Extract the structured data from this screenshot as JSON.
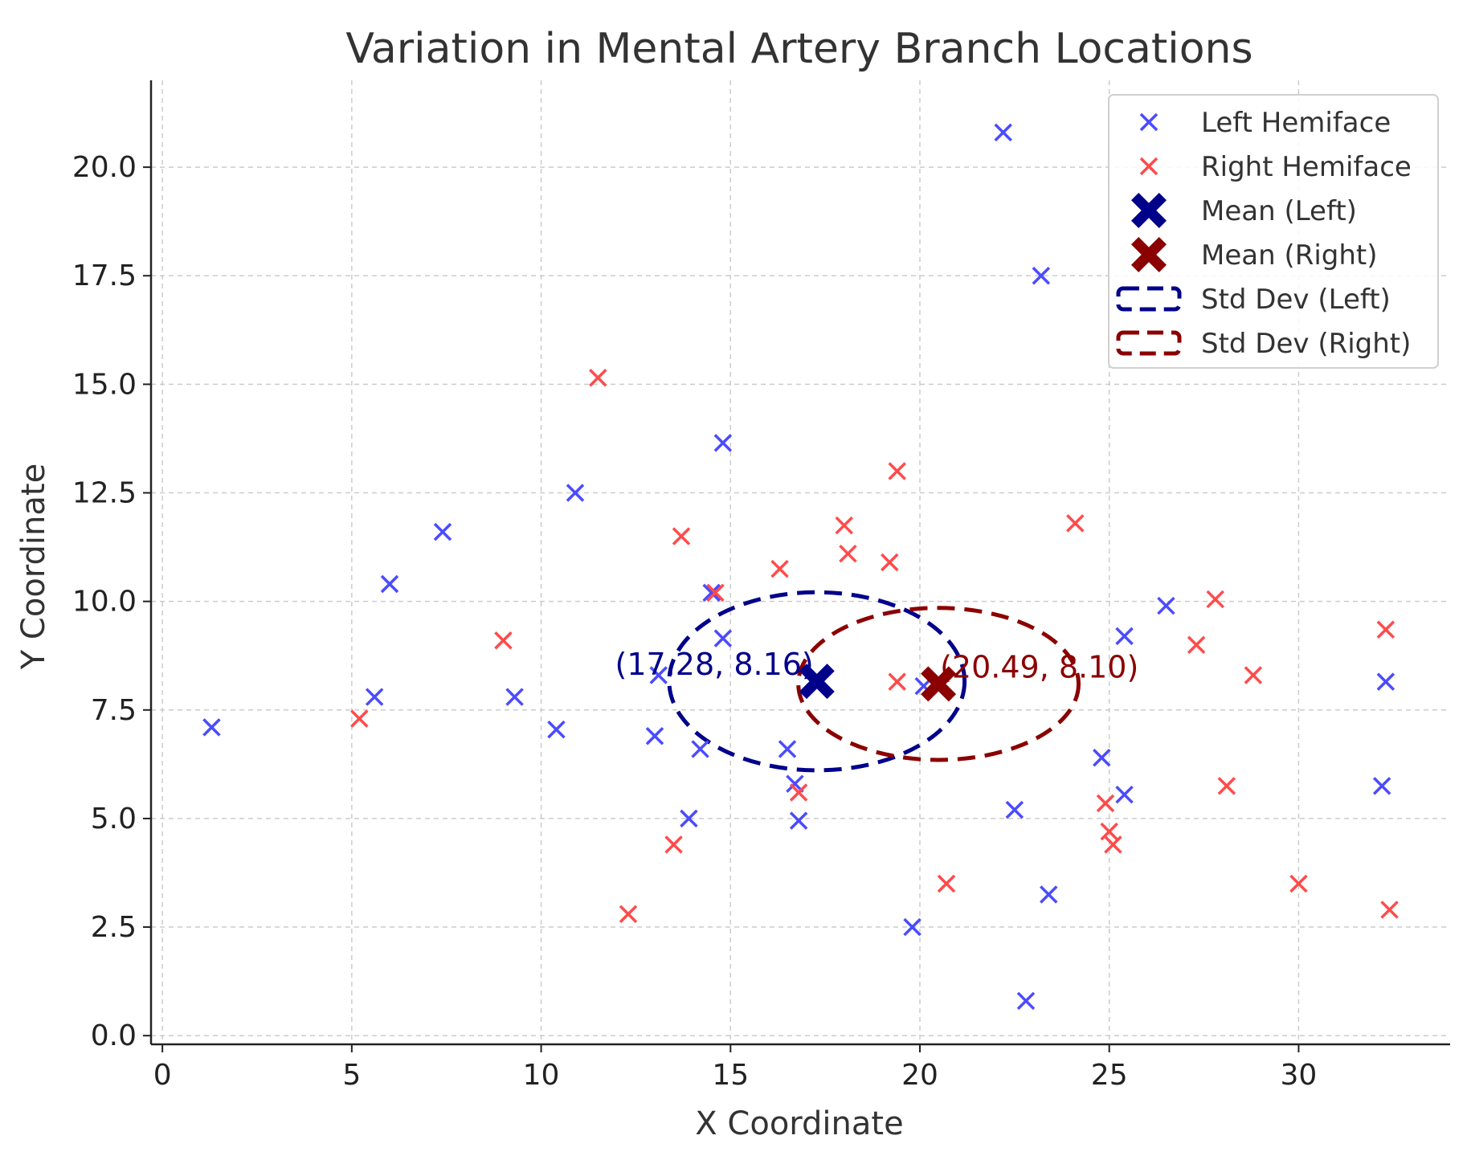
{
  "chart_data": {
    "type": "scatter",
    "title": "Variation in Mental Artery Branch Locations",
    "xlabel": "X Coordinate",
    "ylabel": "Y Coordinate",
    "xlim": [
      -0.3,
      34
    ],
    "ylim": [
      -0.2,
      22
    ],
    "xticks": [
      0,
      5,
      10,
      15,
      20,
      25,
      30
    ],
    "xtick_labels": [
      "0",
      "5",
      "10",
      "15",
      "20",
      "25",
      "30"
    ],
    "yticks": [
      0,
      2.5,
      5,
      7.5,
      10,
      12.5,
      15,
      17.5,
      20
    ],
    "ytick_labels": [
      "0.0",
      "2.5",
      "5.0",
      "7.5",
      "10.0",
      "12.5",
      "15.0",
      "17.5",
      "20.0"
    ],
    "grid": true,
    "legend_position": "top-right",
    "series": [
      {
        "name": "Left Hemiface",
        "color": "#4b4bff",
        "marker": "x",
        "points": [
          [
            1.3,
            7.1
          ],
          [
            5.6,
            7.8
          ],
          [
            6.0,
            10.4
          ],
          [
            7.4,
            11.6
          ],
          [
            9.3,
            7.8
          ],
          [
            10.4,
            7.05
          ],
          [
            10.9,
            12.5
          ],
          [
            13.0,
            6.9
          ],
          [
            13.1,
            8.3
          ],
          [
            13.9,
            5.0
          ],
          [
            14.2,
            6.6
          ],
          [
            14.5,
            10.2
          ],
          [
            14.8,
            9.15
          ],
          [
            14.8,
            13.65
          ],
          [
            16.5,
            6.6
          ],
          [
            16.7,
            5.8
          ],
          [
            16.8,
            4.95
          ],
          [
            19.8,
            2.5
          ],
          [
            20.1,
            8.05
          ],
          [
            22.2,
            20.8
          ],
          [
            22.5,
            5.2
          ],
          [
            22.8,
            0.8
          ],
          [
            23.2,
            17.5
          ],
          [
            23.4,
            3.25
          ],
          [
            24.8,
            6.4
          ],
          [
            25.4,
            9.2
          ],
          [
            25.4,
            5.55
          ],
          [
            26.5,
            9.9
          ],
          [
            32.2,
            5.75
          ],
          [
            32.3,
            8.15
          ]
        ]
      },
      {
        "name": "Right Hemiface",
        "color": "#ff4b4b",
        "marker": "x",
        "points": [
          [
            5.2,
            7.3
          ],
          [
            9.0,
            9.1
          ],
          [
            11.5,
            15.15
          ],
          [
            12.3,
            2.8
          ],
          [
            13.5,
            4.4
          ],
          [
            13.7,
            11.5
          ],
          [
            14.6,
            10.2
          ],
          [
            16.3,
            10.75
          ],
          [
            16.8,
            5.6
          ],
          [
            18.0,
            11.75
          ],
          [
            18.1,
            11.1
          ],
          [
            19.2,
            10.9
          ],
          [
            19.4,
            13.0
          ],
          [
            19.4,
            8.15
          ],
          [
            20.7,
            3.5
          ],
          [
            24.1,
            11.8
          ],
          [
            24.9,
            5.35
          ],
          [
            25.0,
            4.7
          ],
          [
            25.1,
            4.4
          ],
          [
            27.3,
            9.0
          ],
          [
            27.8,
            10.05
          ],
          [
            28.1,
            5.75
          ],
          [
            28.8,
            8.3
          ],
          [
            30.0,
            3.5
          ],
          [
            32.3,
            9.35
          ],
          [
            32.4,
            2.9
          ]
        ]
      }
    ],
    "means": [
      {
        "name": "Mean (Left)",
        "x": 17.28,
        "y": 8.16,
        "label": "(17.28, 8.16)",
        "color": "#00008b"
      },
      {
        "name": "Mean (Right)",
        "x": 20.49,
        "y": 8.1,
        "label": "(20.49, 8.10)",
        "color": "#8b0000"
      }
    ],
    "std_dev_ellipses": [
      {
        "name": "Std Dev (Left)",
        "cx": 17.28,
        "cy": 8.16,
        "sx": 7.8,
        "sy": 4.1,
        "color": "#00008b"
      },
      {
        "name": "Std Dev (Right)",
        "cx": 20.49,
        "cy": 8.1,
        "sx": 7.4,
        "sy": 3.5,
        "color": "#8b0000"
      }
    ],
    "legend": [
      {
        "label": "Left Hemiface",
        "kind": "x",
        "color": "#4b4bff"
      },
      {
        "label": "Right Hemiface",
        "kind": "x",
        "color": "#ff4b4b"
      },
      {
        "label": "Mean (Left)",
        "kind": "X",
        "color": "#00008b"
      },
      {
        "label": "Mean (Right)",
        "kind": "X",
        "color": "#8b0000"
      },
      {
        "label": "Std Dev (Left)",
        "kind": "dashed-box",
        "color": "#00008b"
      },
      {
        "label": "Std Dev (Right)",
        "kind": "dashed-box",
        "color": "#8b0000"
      }
    ]
  }
}
